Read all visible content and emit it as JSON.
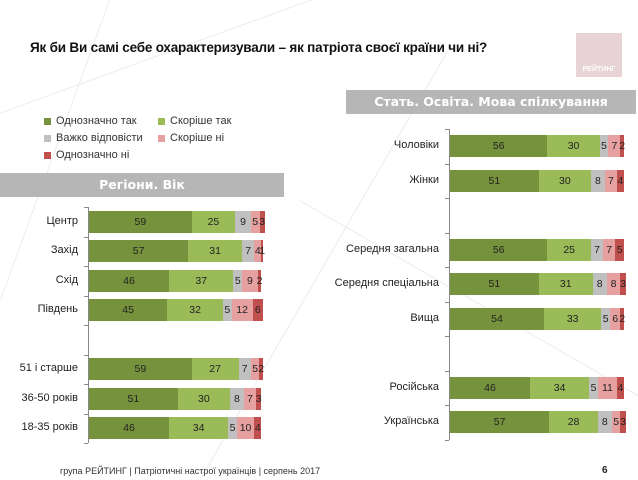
{
  "title": "Як  би Ви самі себе охарактеризували – як патріота своєї країни чи ні?",
  "logo_text": "РЕЙТИНГ",
  "footer": "група РЕЙТИНГ  | Патріотичні настрої українців |  серпень 2017",
  "page_number": "6",
  "banners": {
    "left": "Регіони. Вік",
    "right": "Стать. Освіта. Мова спілкування"
  },
  "legend": [
    {
      "label": "Однозначно так",
      "color": "#76923c"
    },
    {
      "label": "Скоріше так",
      "color": "#9bbb59"
    },
    {
      "label": "Важко відповісти",
      "color": "#c0c0c0"
    },
    {
      "label": "Скоріше ні",
      "color": "#e6a0a0"
    },
    {
      "label": "Однозначно ні",
      "color": "#c0504d"
    }
  ],
  "chart_data": [
    {
      "type": "bar",
      "orientation": "horizontal",
      "stacked": true,
      "title": "Регіони. Вік",
      "categories": [
        "Центр",
        "Захід",
        "Схід",
        "Південь",
        "",
        "51 і старше",
        "36-50 років",
        "18-35 років"
      ],
      "series": [
        {
          "name": "Однозначно так",
          "values": [
            59,
            57,
            46,
            45,
            null,
            59,
            51,
            46
          ]
        },
        {
          "name": "Скоріше так",
          "values": [
            25,
            31,
            37,
            32,
            null,
            27,
            30,
            34
          ]
        },
        {
          "name": "Важко відповісти",
          "values": [
            9,
            7,
            5,
            5,
            null,
            7,
            8,
            5
          ]
        },
        {
          "name": "Скоріше ні",
          "values": [
            5,
            4,
            9,
            12,
            null,
            5,
            7,
            10
          ]
        },
        {
          "name": "Однозначно ні",
          "values": [
            3,
            1,
            2,
            6,
            null,
            2,
            3,
            4
          ]
        }
      ],
      "xlim": [
        0,
        100
      ],
      "legend_position": "top"
    },
    {
      "type": "bar",
      "orientation": "horizontal",
      "stacked": true,
      "title": "Стать. Освіта. Мова спілкування",
      "categories": [
        "Чоловіки",
        "Жінки",
        "",
        "Середня загальна",
        "Середня спеціальна",
        "Вища",
        "",
        "Російська",
        "Українська"
      ],
      "series": [
        {
          "name": "Однозначно так",
          "values": [
            56,
            51,
            null,
            56,
            51,
            54,
            null,
            46,
            57
          ]
        },
        {
          "name": "Скоріше так",
          "values": [
            30,
            30,
            null,
            25,
            31,
            33,
            null,
            34,
            28
          ]
        },
        {
          "name": "Важко відповісти",
          "values": [
            5,
            8,
            null,
            7,
            8,
            5,
            null,
            5,
            8
          ]
        },
        {
          "name": "Скоріше ні",
          "values": [
            7,
            7,
            null,
            7,
            8,
            6,
            null,
            11,
            5
          ]
        },
        {
          "name": "Однозначно ні",
          "values": [
            2,
            4,
            null,
            5,
            3,
            2,
            null,
            4,
            3
          ]
        }
      ],
      "xlim": [
        0,
        100
      ]
    }
  ]
}
